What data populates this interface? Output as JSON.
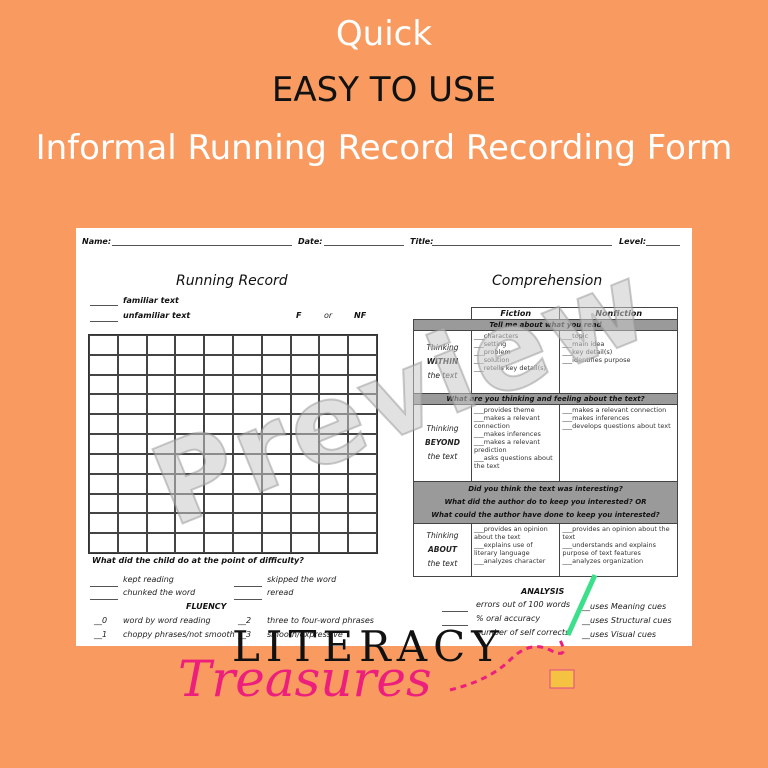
{
  "header": {
    "line1": "Quick",
    "line2": "EASY TO USE",
    "line3": "Informal Running Record Recording Form"
  },
  "form": {
    "name_label": "Name:",
    "date_label": "Date:",
    "title_label": "Title:",
    "level_label": "Level:",
    "running_record": {
      "title": "Running Record",
      "familiar": "familiar text",
      "unfamiliar": "unfamiliar text",
      "f": "F",
      "or": "or",
      "nf": "NF",
      "difficulty_q": "What did the child do at the point of difficulty?",
      "difficulty": [
        "kept reading",
        "skipped the word",
        "chunked the word",
        "reread"
      ],
      "fluency_title": "FLUENCY",
      "fluency": [
        {
          "n": "0",
          "t": "word by word reading"
        },
        {
          "n": "2",
          "t": "three to four-word phrases"
        },
        {
          "n": "1",
          "t": "choppy phrases/not smooth"
        },
        {
          "n": "3",
          "t": "smooth/expressive"
        }
      ]
    },
    "comprehension": {
      "title": "Comprehension",
      "fiction": "Fiction",
      "nonfiction": "Nonfiction",
      "band1": "Tell me about what you read",
      "within": {
        "l1": "Thinking",
        "l2": "WITHIN",
        "l3": "the text",
        "fiction": "___characters\n___setting\n___problem\n___solution\n___retells key detail(s)",
        "nonfiction": "___topic\n___main idea\n___key detail(s)\n___identifies purpose"
      },
      "band2": "What are you thinking and feeling about the text?",
      "beyond": {
        "l1": "Thinking",
        "l2": "BEYOND",
        "l3": "the text",
        "fiction": "___provides theme\n___makes a relevant connection\n___makes inferences\n___makes a relevant prediction\n___asks questions about the text",
        "nonfiction": "___makes a relevant connection\n___makes inferences\n___develops questions about text"
      },
      "band3": "Did you think the text was interesting?\nWhat did the author do to keep you interested? OR\nWhat could the author have done to keep you interested?",
      "about": {
        "l1": "Thinking",
        "l2": "ABOUT",
        "l3": "the text",
        "fiction": "___provides an opinion about the text\n___explains use of literary language\n___analyzes character",
        "nonfiction": "___provides an opinion about the text\n___understands and explains purpose of text features\n___analyzes organization"
      },
      "analysis_title": "ANALYSIS",
      "analysis": [
        "errors out of 100 words",
        "% oral accuracy",
        "number of self corrects"
      ],
      "cues": [
        "__uses Meaning cues",
        "__uses Structural cues",
        "__uses Visual cues"
      ]
    }
  },
  "watermark": "Preview",
  "logo": {
    "line1": "LITERACY",
    "line2": "Treasures"
  },
  "colors": {
    "background": "#F99B60",
    "band": "#9a9a9a",
    "logo_pink": "#ec1f7c"
  }
}
